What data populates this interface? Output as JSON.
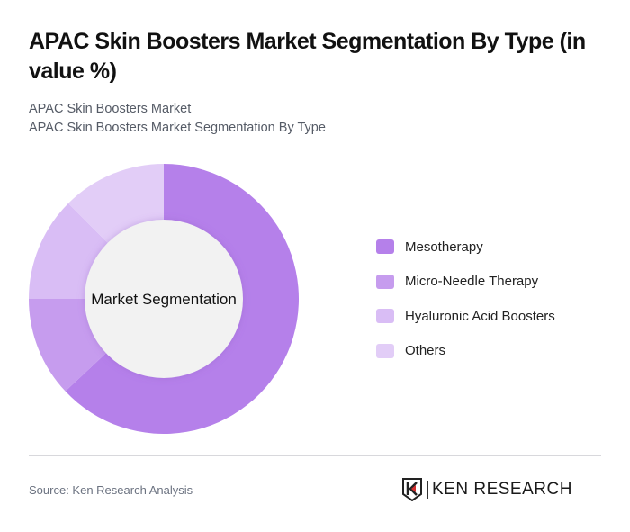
{
  "header": {
    "title": "APAC Skin Boosters Market Segmentation By Type (in value %)",
    "subtitle_line1": "APAC Skin Boosters Market",
    "subtitle_line2": "APAC Skin Boosters Market Segmentation By Type"
  },
  "chart_data": {
    "type": "pie",
    "variant": "donut",
    "title": "APAC Skin Boosters Market Segmentation By Type (in value %)",
    "center_label": "Market Segmentation",
    "categories": [
      "Mesotherapy",
      "Micro-Needle Therapy",
      "Hyaluronic Acid Boosters",
      "Others"
    ],
    "values": [
      63,
      12,
      12.5,
      12.5
    ],
    "unit": "%",
    "colors": [
      "#b580ea",
      "#c69cee",
      "#d9bdf5",
      "#e2cdf7"
    ],
    "start_angle": "top (12 o'clock), clockwise",
    "legend_position": "right"
  },
  "legend": {
    "items": [
      {
        "label": "Mesotherapy",
        "color": "#b580ea"
      },
      {
        "label": "Micro-Needle Therapy",
        "color": "#c69cee"
      },
      {
        "label": "Hyaluronic Acid Boosters",
        "color": "#d9bdf5"
      },
      {
        "label": "Others",
        "color": "#e2cdf7"
      }
    ]
  },
  "footer": {
    "source": "Source: Ken Research Analysis",
    "logo_text": "KEN RESEARCH"
  }
}
